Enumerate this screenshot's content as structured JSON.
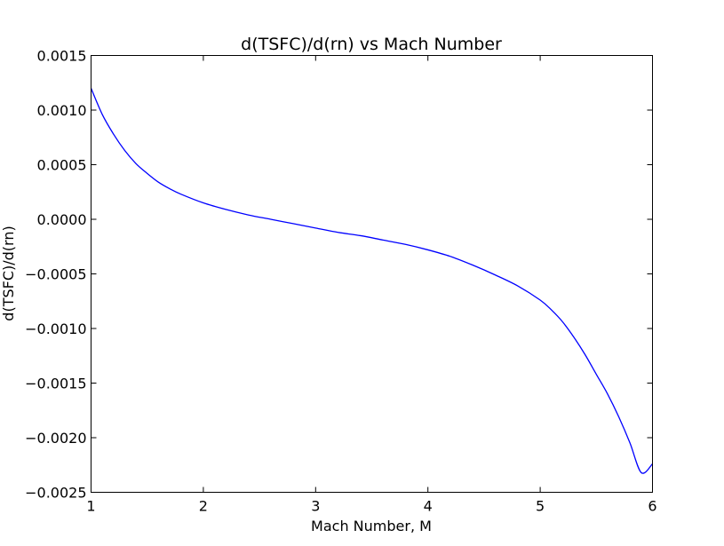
{
  "chart_data": {
    "type": "line",
    "title": "d(TSFC)/d(rn) vs Mach Number",
    "xlabel": "Mach Number, M",
    "ylabel": "d(TSFC)/d(rn)",
    "xlim": [
      1,
      6
    ],
    "ylim": [
      -0.0025,
      0.0015
    ],
    "xticks": [
      1,
      2,
      3,
      4,
      5,
      6
    ],
    "xtick_labels": [
      "1",
      "2",
      "3",
      "4",
      "5",
      "6"
    ],
    "yticks": [
      0.0015,
      0.001,
      0.0005,
      0.0,
      -0.0005,
      -0.001,
      -0.0015,
      -0.002,
      -0.0025
    ],
    "ytick_labels": [
      "0.0015",
      "0.0010",
      "0.0005",
      "0.0000",
      "−0.0005",
      "−0.0010",
      "−0.0015",
      "−0.0020",
      "−0.0025"
    ],
    "grid": false,
    "series": [
      {
        "color": "#0000ff",
        "x": [
          1.0,
          1.1,
          1.2,
          1.3,
          1.4,
          1.5,
          1.6,
          1.7,
          1.8,
          2.0,
          2.2,
          2.4,
          2.6,
          2.8,
          3.0,
          3.2,
          3.4,
          3.6,
          3.8,
          4.0,
          4.2,
          4.4,
          4.6,
          4.8,
          5.0,
          5.1,
          5.2,
          5.3,
          5.4,
          5.5,
          5.6,
          5.7,
          5.8,
          5.9,
          6.0
        ],
        "y": [
          0.0012,
          0.00096,
          0.00078,
          0.00063,
          0.00051,
          0.00042,
          0.00034,
          0.00028,
          0.00023,
          0.00015,
          9e-05,
          4e-05,
          0.0,
          -4e-05,
          -8e-05,
          -0.00012,
          -0.00015,
          -0.00019,
          -0.00023,
          -0.00028,
          -0.00034,
          -0.00042,
          -0.00051,
          -0.00061,
          -0.00074,
          -0.00083,
          -0.00094,
          -0.00108,
          -0.00124,
          -0.00142,
          -0.0016,
          -0.00181,
          -0.00205,
          -0.00232,
          -0.00224
        ]
      }
    ]
  }
}
